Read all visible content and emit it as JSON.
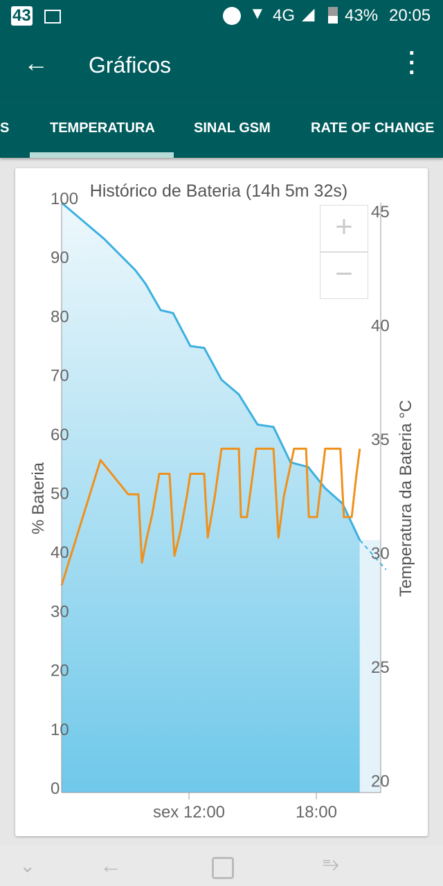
{
  "status_bar": {
    "notif_count": "43",
    "network": "4G",
    "battery": "43%",
    "time": "20:05",
    "icons": [
      "notification-count-icon",
      "image-icon",
      "do-not-disturb-icon",
      "wifi-icon",
      "signal-icon",
      "battery-icon"
    ]
  },
  "toolbar": {
    "title": "Gráficos",
    "back_icon": "arrow-left-icon",
    "menu_icon": "more-vert-icon"
  },
  "tabs": [
    {
      "label": "S"
    },
    {
      "label": "TEMPERATURA",
      "selected": true
    },
    {
      "label": "SINAL GSM"
    },
    {
      "label": "RATE OF CHANGE"
    }
  ],
  "zoom": {
    "plus": "+",
    "minus": "−"
  },
  "colors": {
    "primary": "#005b5c",
    "battery_line": "#3bb0e0",
    "temperature_line": "#f0901a"
  },
  "chart_data": {
    "type": "line",
    "title": "Histórico de Bateria (14h 5m 32s)",
    "ylabel": "% Bateria",
    "y2label": "Temperatura da Bateria °C",
    "xlim": [
      "06:00",
      "21:02"
    ],
    "ylim": [
      0,
      100
    ],
    "y2lim": [
      19.5,
      45.4
    ],
    "x_ticks": [
      {
        "at": "12:00",
        "label": "sex 12:00"
      },
      {
        "at": "18:00",
        "label": "18:00"
      }
    ],
    "y_ticks": [
      0,
      10,
      20,
      30,
      40,
      50,
      60,
      70,
      80,
      90,
      100
    ],
    "y2_ticks": [
      20,
      25,
      30,
      35,
      40,
      45
    ],
    "series": [
      {
        "key": "battery",
        "area": true,
        "points": [
          [
            "06:00",
            100
          ],
          [
            "08:00",
            93.9
          ],
          [
            "09:28",
            88.6
          ],
          [
            "09:57",
            86.3
          ],
          [
            "10:40",
            81.8
          ],
          [
            "11:15",
            81.3
          ],
          [
            "12:04",
            75.7
          ],
          [
            "12:43",
            75.4
          ],
          [
            "13:32",
            70
          ],
          [
            "14:21",
            67.5
          ],
          [
            "15:14",
            62.4
          ],
          [
            "15:59",
            62
          ],
          [
            "16:47",
            56
          ],
          [
            "17:37",
            55.2
          ],
          [
            "18:25",
            51.6
          ],
          [
            "19:14",
            49
          ],
          [
            "20:03",
            42.8
          ]
        ],
        "projection": [
          [
            "20:03",
            42.8
          ],
          [
            "21:17",
            37.8
          ]
        ]
      },
      {
        "key": "temperature",
        "axis": "right",
        "points": [
          [
            "06:00",
            28.6
          ],
          [
            "07:50",
            34.1
          ],
          [
            "09:08",
            32.6
          ],
          [
            "09:37",
            32.6
          ],
          [
            "09:47",
            29.6
          ],
          [
            "10:01",
            30.7
          ],
          [
            "10:16",
            31.7
          ],
          [
            "10:36",
            33.5
          ],
          [
            "11:05",
            33.5
          ],
          [
            "11:19",
            29.9
          ],
          [
            "11:35",
            30.9
          ],
          [
            "11:54",
            32.5
          ],
          [
            "12:04",
            33.5
          ],
          [
            "12:43",
            33.5
          ],
          [
            "12:53",
            30.7
          ],
          [
            "13:13",
            32.5
          ],
          [
            "13:32",
            34.6
          ],
          [
            "14:21",
            34.6
          ],
          [
            "14:27",
            31.6
          ],
          [
            "14:44",
            31.6
          ],
          [
            "15:10",
            34.6
          ],
          [
            "15:59",
            34.6
          ],
          [
            "16:13",
            30.7
          ],
          [
            "16:28",
            32.5
          ],
          [
            "16:57",
            34.6
          ],
          [
            "17:31",
            34.6
          ],
          [
            "17:39",
            31.6
          ],
          [
            "18:02",
            31.6
          ],
          [
            "18:25",
            34.6
          ],
          [
            "19:08",
            34.6
          ],
          [
            "19:18",
            31.6
          ],
          [
            "19:40",
            31.6
          ],
          [
            "19:53",
            33.4
          ],
          [
            "20:03",
            34.6
          ]
        ]
      }
    ]
  }
}
